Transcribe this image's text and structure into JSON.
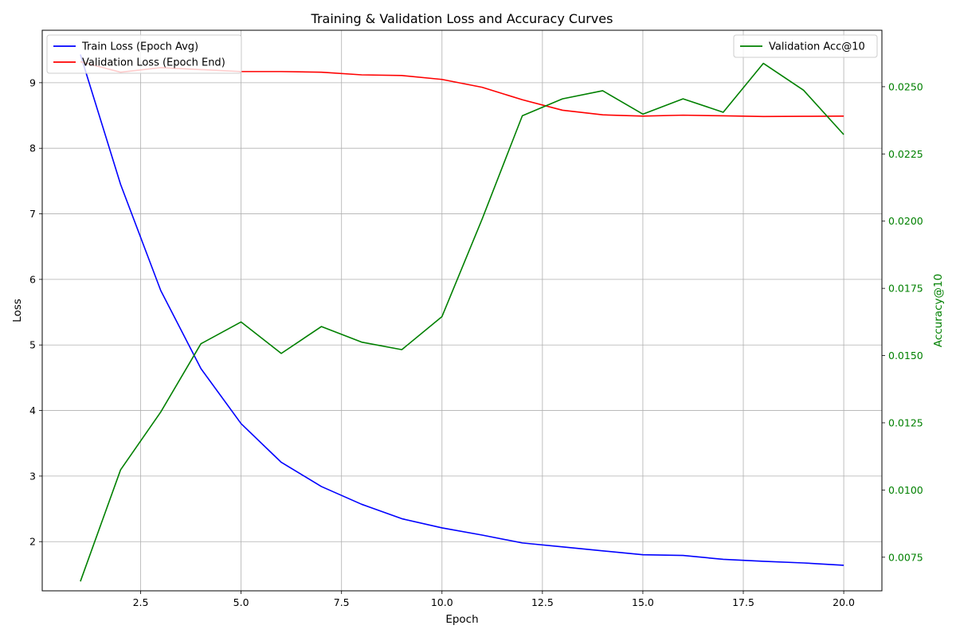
{
  "chart_data": {
    "type": "line",
    "title": "Training & Validation Loss and Accuracy Curves",
    "xlabel": "Epoch",
    "ylabel": "Loss",
    "ylabel_right": "Accuracy@10",
    "xlim": [
      0.05,
      20.95
    ],
    "ylim": [
      1.25,
      9.8
    ],
    "ylim_right": [
      0.00625,
      0.0271
    ],
    "x_ticks": [
      2.5,
      5.0,
      7.5,
      10.0,
      12.5,
      15.0,
      17.5,
      20.0
    ],
    "x_tick_labels": [
      "2.5",
      "5.0",
      "7.5",
      "10.0",
      "12.5",
      "15.0",
      "17.5",
      "20.0"
    ],
    "y_ticks": [
      2,
      3,
      4,
      5,
      6,
      7,
      8,
      9
    ],
    "y_tick_labels": [
      "2",
      "3",
      "4",
      "5",
      "6",
      "7",
      "8",
      "9"
    ],
    "y_ticks_right": [
      0.0075,
      0.01,
      0.0125,
      0.015,
      0.0175,
      0.02,
      0.0225,
      0.025
    ],
    "y_tick_labels_right": [
      "0.0075",
      "0.0100",
      "0.0125",
      "0.0150",
      "0.0175",
      "0.0200",
      "0.0225",
      "0.0250"
    ],
    "grid": true,
    "x": [
      1,
      2,
      3,
      4,
      5,
      6,
      7,
      8,
      9,
      10,
      11,
      12,
      13,
      14,
      15,
      16,
      17,
      18,
      19,
      20
    ],
    "series": [
      {
        "name": "Train Loss (Epoch Avg)",
        "axis": "left",
        "color": "#0000ff",
        "values": [
          9.43,
          7.45,
          5.83,
          4.64,
          3.8,
          3.21,
          2.84,
          2.57,
          2.35,
          2.21,
          2.1,
          1.98,
          1.92,
          1.86,
          1.8,
          1.79,
          1.73,
          1.7,
          1.675,
          1.64
        ]
      },
      {
        "name": "Validation Loss (Epoch End)",
        "axis": "left",
        "color": "#ff0000",
        "values": [
          9.32,
          9.16,
          9.23,
          9.2,
          9.17,
          9.17,
          9.16,
          9.12,
          9.11,
          9.05,
          8.93,
          8.74,
          8.58,
          8.51,
          8.49,
          8.505,
          8.495,
          8.485,
          8.487,
          8.49
        ]
      },
      {
        "name": "Validation Acc@10",
        "axis": "right",
        "color": "#008000",
        "values": [
          0.0066,
          0.01075,
          0.0129,
          0.01544,
          0.01625,
          0.01508,
          0.01608,
          0.0155,
          0.01522,
          0.01645,
          0.02008,
          0.02392,
          0.02455,
          0.02485,
          0.02398,
          0.02455,
          0.02405,
          0.02587,
          0.02487,
          0.02322
        ]
      }
    ],
    "legend_left_placement": "upper left",
    "legend_right_placement": "upper right"
  }
}
